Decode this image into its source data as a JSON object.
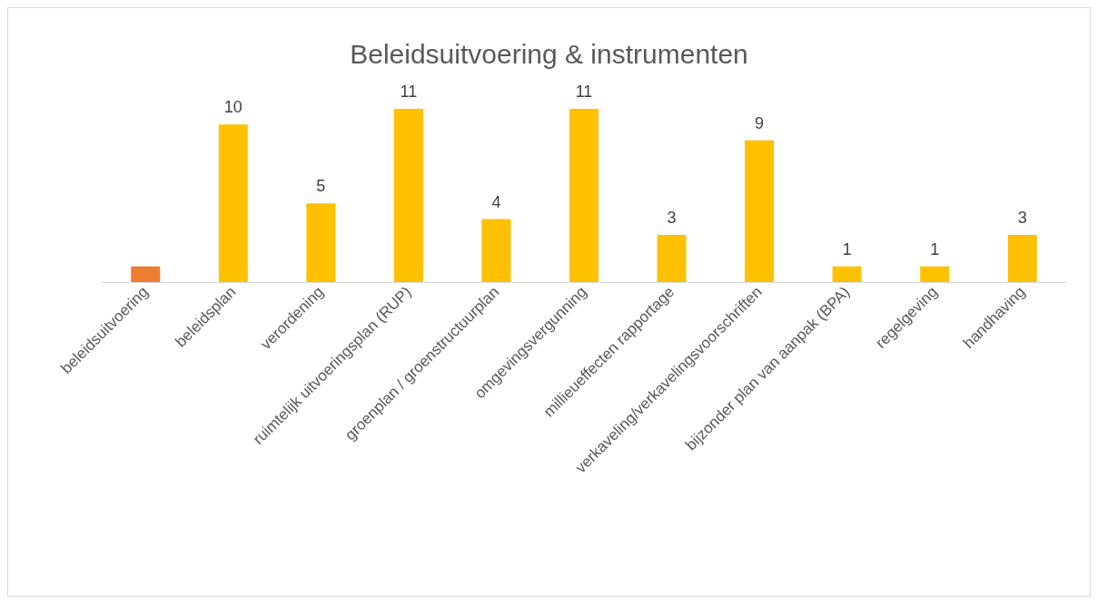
{
  "chart_data": {
    "type": "bar",
    "title": "Beleidsuitvoering & instrumenten",
    "categories": [
      "beleidsuitvoering",
      "beleidsplan",
      "verordening",
      "ruimtelijk uitvoeringsplan (RUP)",
      "groenplan / groenstructuurplan",
      "omgevingsvergunning",
      "millieueffecten rapportage",
      "verkaveling/verkavelingsvoorschriften",
      "bijzonder plan van aanpak (BPA)",
      "regelgeving",
      "handhaving"
    ],
    "values": [
      1,
      10,
      5,
      11,
      4,
      11,
      3,
      9,
      1,
      1,
      3
    ],
    "value_labels": [
      null,
      "10",
      "5",
      "11",
      "4",
      "11",
      "3",
      "9",
      "1",
      "1",
      "3"
    ],
    "colors": [
      "#ed7d31",
      "#ffc000",
      "#ffc000",
      "#ffc000",
      "#ffc000",
      "#ffc000",
      "#ffc000",
      "#ffc000",
      "#ffc000",
      "#ffc000",
      "#ffc000"
    ],
    "orientation": "vertical"
  }
}
